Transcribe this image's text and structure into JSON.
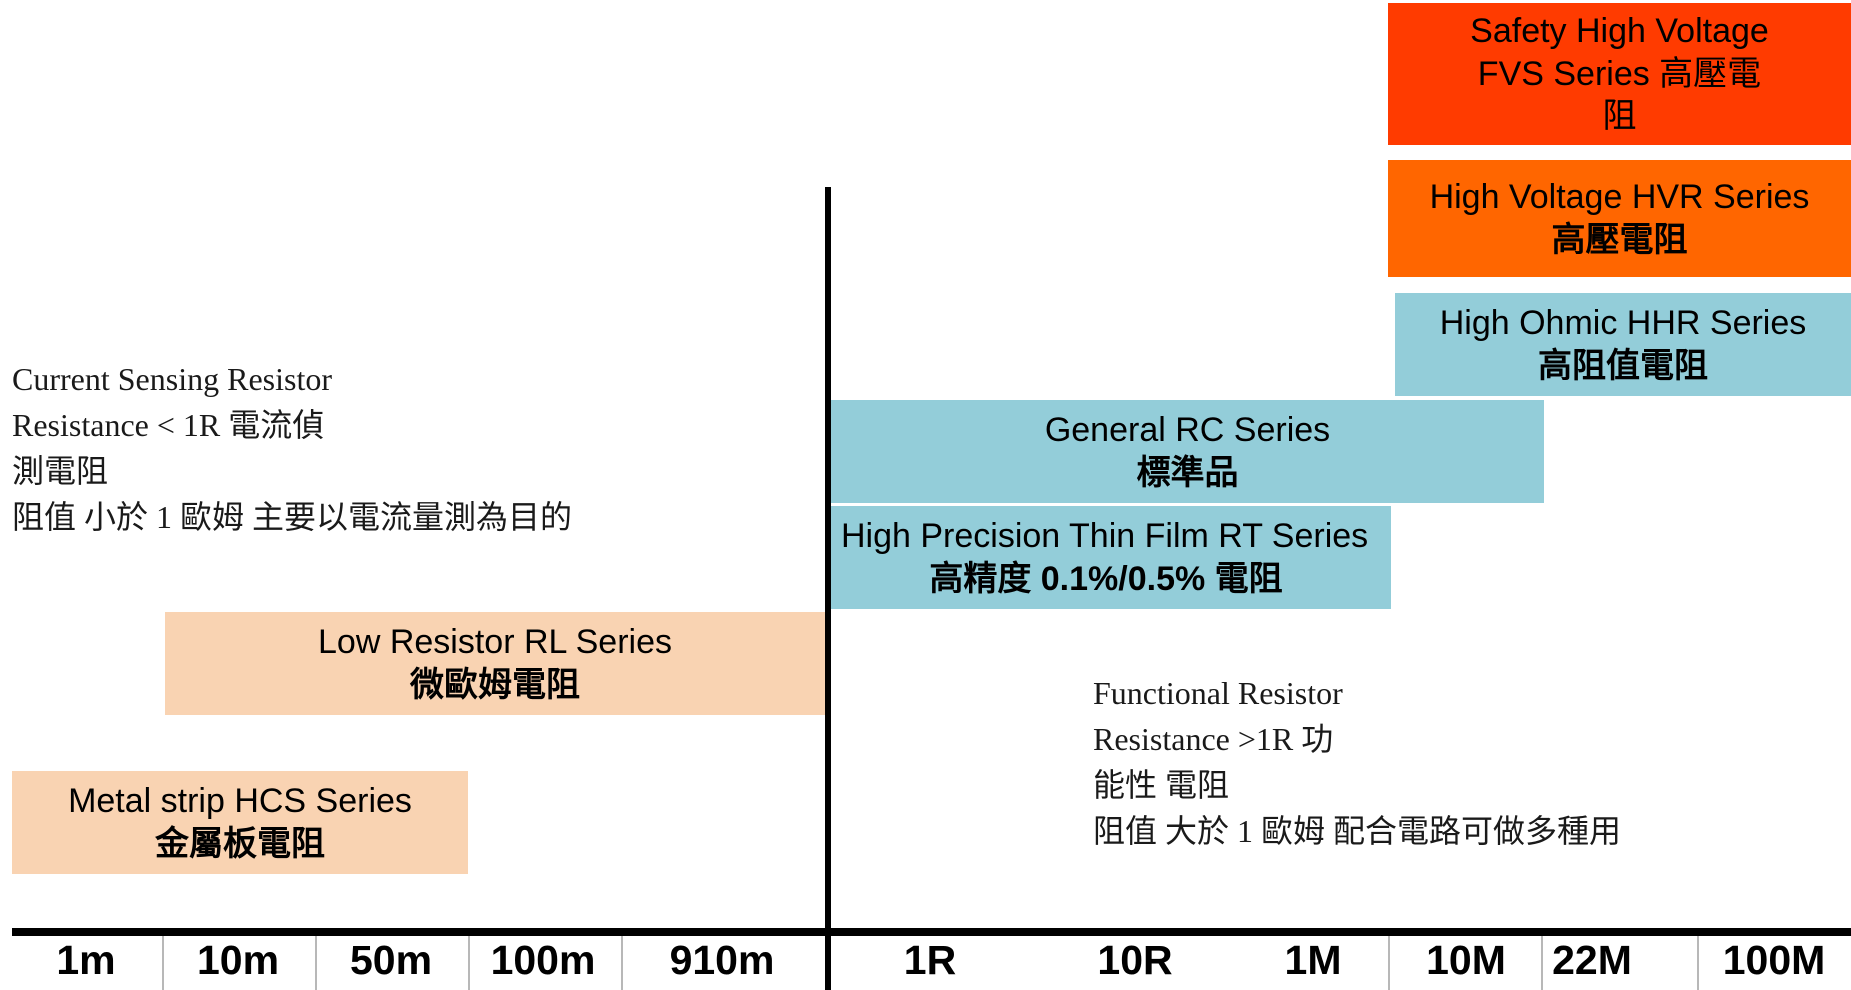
{
  "bands": {
    "safety_hv": {
      "title_lines": [
        "Safety High Voltage",
        "FVS Series 高壓電",
        "阻"
      ],
      "color": "#ff3b00"
    },
    "hv": {
      "title": "High Voltage HVR Series",
      "subtitle": "高壓電阻",
      "color": "#ff6600"
    },
    "high_ohmic": {
      "title": "High Ohmic HHR Series",
      "subtitle": "高阻值電阻",
      "color": "#93cdd9"
    },
    "general": {
      "title": "General  RC Series",
      "subtitle": "標準品",
      "color": "#93cdd9"
    },
    "thin_film": {
      "title": "High Precision Thin Film RT Series",
      "subtitle": "高精度 0.1%/0.5% 電阻",
      "color": "#93cdd9"
    },
    "low_resistor": {
      "title": "Low Resistor RL Series",
      "subtitle": "微歐姆電阻",
      "color": "#f9d3b2"
    },
    "metal_strip": {
      "title": "Metal strip HCS Series",
      "subtitle": "金屬板電阻",
      "color": "#f9d3b2"
    }
  },
  "notes": {
    "current_sensing": {
      "lines": [
        "Current Sensing Resistor",
        "Resistance < 1R 電流偵",
        "測電阻",
        "阻值 小於 1 歐姆 主要以電流量測為目的"
      ]
    },
    "functional": {
      "lines": [
        "Functional Resistor",
        "Resistance >1R 功",
        "能性 電阻",
        "阻值 大於 1 歐姆 配合電路可做多種用"
      ]
    }
  },
  "axis": {
    "tick_labels": [
      "1m",
      "10m",
      "50m",
      "100m",
      "910m",
      "1R",
      "10R",
      "1M",
      "10M",
      "22M",
      "100M"
    ]
  }
}
